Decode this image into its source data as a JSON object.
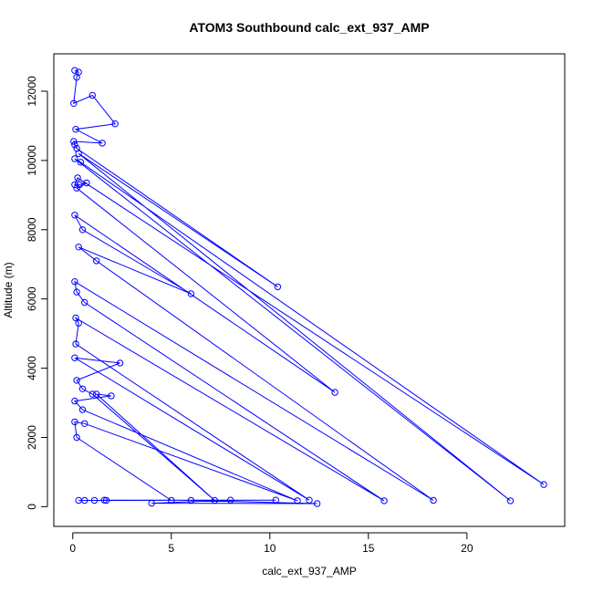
{
  "chart_data": {
    "type": "scatter",
    "title": "ATOM3 Southbound calc_ext_937_AMP",
    "xlabel": "calc_ext_937_AMP",
    "ylabel": "Altitude (m)",
    "xlim": [
      -0.96,
      24.96
    ],
    "ylim": [
      -570,
      13080
    ],
    "x_ticks": [
      0,
      5,
      10,
      15,
      20
    ],
    "y_ticks": [
      0,
      2000,
      4000,
      6000,
      8000,
      10000,
      12000
    ],
    "x_tick_labels": [
      "0",
      "5",
      "10",
      "15",
      "20"
    ],
    "y_tick_labels": [
      "0",
      "2000",
      "4000",
      "6000",
      "8000",
      "10000",
      "12000"
    ],
    "grid": false,
    "series_color": "#0000ff",
    "series": [
      {
        "style": "line+points",
        "points": [
          [
            0.1,
            12600
          ],
          [
            0.3,
            12550
          ],
          [
            0.2,
            12400
          ],
          [
            0.05,
            11650
          ],
          [
            1.0,
            11880
          ],
          [
            2.15,
            11060
          ],
          [
            0.15,
            10900
          ],
          [
            1.5,
            10500
          ],
          [
            0.05,
            10550
          ],
          [
            0.1,
            10450
          ],
          [
            0.2,
            10350
          ],
          [
            10.4,
            6350
          ],
          [
            0.3,
            10200
          ],
          [
            22.2,
            170
          ],
          [
            0.1,
            10050
          ],
          [
            0.4,
            9950
          ],
          [
            23.9,
            640
          ],
          [
            0.25,
            9500
          ],
          [
            0.1,
            9300
          ],
          [
            0.35,
            9300
          ],
          [
            0.7,
            9350
          ],
          [
            0.2,
            9200
          ],
          [
            13.3,
            3300
          ],
          [
            0.1,
            8420
          ],
          [
            0.5,
            8000
          ],
          [
            6.0,
            6150
          ],
          [
            0.3,
            7500
          ],
          [
            1.2,
            7100
          ],
          [
            18.3,
            180
          ],
          [
            0.1,
            6500
          ],
          [
            0.2,
            6200
          ],
          [
            0.6,
            5900
          ],
          [
            15.8,
            170
          ],
          [
            0.15,
            5450
          ],
          [
            0.3,
            5300
          ],
          [
            0.15,
            4700
          ],
          [
            12.0,
            190
          ],
          [
            0.1,
            4300
          ],
          [
            2.4,
            4150
          ],
          [
            0.2,
            3650
          ],
          [
            0.5,
            3400
          ],
          [
            1.0,
            3250
          ],
          [
            7.2,
            180
          ],
          [
            1.2,
            3250
          ],
          [
            1.95,
            3200
          ],
          [
            0.1,
            3050
          ],
          [
            0.5,
            2800
          ],
          [
            11.4,
            170
          ],
          [
            0.6,
            2400
          ],
          [
            0.1,
            2450
          ],
          [
            0.2,
            2000
          ],
          [
            5.0,
            180
          ],
          [
            0.3,
            180
          ],
          [
            0.6,
            180
          ],
          [
            1.1,
            180
          ],
          [
            1.7,
            180
          ],
          [
            8.0,
            190
          ],
          [
            4.0,
            100
          ],
          [
            12.4,
            90
          ],
          [
            6.0,
            180
          ],
          [
            10.3,
            190
          ],
          [
            1.6,
            190
          ]
        ]
      }
    ]
  }
}
